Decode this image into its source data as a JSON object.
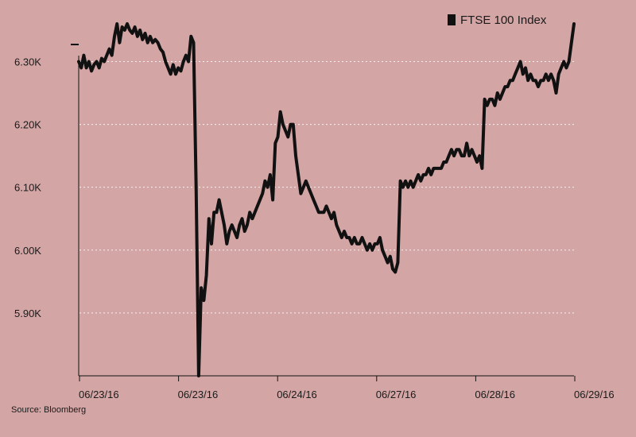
{
  "chart_data": {
    "type": "line",
    "title": "",
    "xlabel": "",
    "ylabel": "",
    "ylim": [
      5.8,
      6.36
    ],
    "grid": true,
    "legend_position": "top-right",
    "y_ticks": [
      {
        "value": 5.9,
        "label": "5.90K"
      },
      {
        "value": 6.0,
        "label": "6.00K"
      },
      {
        "value": 6.1,
        "label": "6.10K"
      },
      {
        "value": 6.2,
        "label": "6.20K"
      },
      {
        "value": 6.3,
        "label": "6.30K"
      }
    ],
    "x_ticks": [
      "06/23/16",
      "06/23/16",
      "06/24/16",
      "06/27/16",
      "06/28/16",
      "06/29/16"
    ],
    "series": [
      {
        "name": "FTSE 100 Index",
        "color": "#111111",
        "values": [
          6.3,
          6.29,
          6.31,
          6.29,
          6.3,
          6.285,
          6.295,
          6.3,
          6.29,
          6.305,
          6.3,
          6.31,
          6.32,
          6.31,
          6.34,
          6.36,
          6.33,
          6.355,
          6.35,
          6.36,
          6.35,
          6.345,
          6.355,
          6.34,
          6.35,
          6.335,
          6.345,
          6.33,
          6.34,
          6.33,
          6.335,
          6.33,
          6.32,
          6.315,
          6.3,
          6.29,
          6.28,
          6.295,
          6.28,
          6.29,
          6.285,
          6.3,
          6.31,
          6.3,
          6.34,
          6.33,
          6.1,
          5.8,
          5.94,
          5.92,
          5.96,
          6.05,
          6.01,
          6.06,
          6.06,
          6.08,
          6.06,
          6.04,
          6.01,
          6.03,
          6.04,
          6.03,
          6.02,
          6.04,
          6.05,
          6.03,
          6.04,
          6.06,
          6.05,
          6.06,
          6.07,
          6.08,
          6.09,
          6.11,
          6.1,
          6.12,
          6.08,
          6.17,
          6.18,
          6.22,
          6.2,
          6.19,
          6.18,
          6.2,
          6.2,
          6.15,
          6.12,
          6.09,
          6.1,
          6.11,
          6.1,
          6.09,
          6.08,
          6.07,
          6.06,
          6.06,
          6.06,
          6.07,
          6.06,
          6.05,
          6.06,
          6.04,
          6.03,
          6.02,
          6.03,
          6.02,
          6.02,
          6.01,
          6.02,
          6.01,
          6.01,
          6.02,
          6.01,
          6.0,
          6.01,
          6.0,
          6.01,
          6.01,
          6.02,
          6.0,
          5.99,
          5.98,
          5.99,
          5.97,
          5.965,
          5.98,
          6.11,
          6.1,
          6.11,
          6.1,
          6.11,
          6.1,
          6.11,
          6.12,
          6.11,
          6.12,
          6.12,
          6.13,
          6.12,
          6.13,
          6.13,
          6.13,
          6.13,
          6.14,
          6.14,
          6.15,
          6.16,
          6.15,
          6.16,
          6.16,
          6.15,
          6.15,
          6.17,
          6.15,
          6.16,
          6.15,
          6.14,
          6.15,
          6.13,
          6.24,
          6.23,
          6.24,
          6.24,
          6.23,
          6.25,
          6.24,
          6.25,
          6.26,
          6.26,
          6.27,
          6.27,
          6.28,
          6.29,
          6.3,
          6.28,
          6.29,
          6.27,
          6.28,
          6.27,
          6.27,
          6.26,
          6.27,
          6.27,
          6.28,
          6.27,
          6.28,
          6.27,
          6.25,
          6.28,
          6.29,
          6.3,
          6.29,
          6.3,
          6.33,
          6.36
        ]
      }
    ]
  },
  "source": "Source: Bloomberg"
}
